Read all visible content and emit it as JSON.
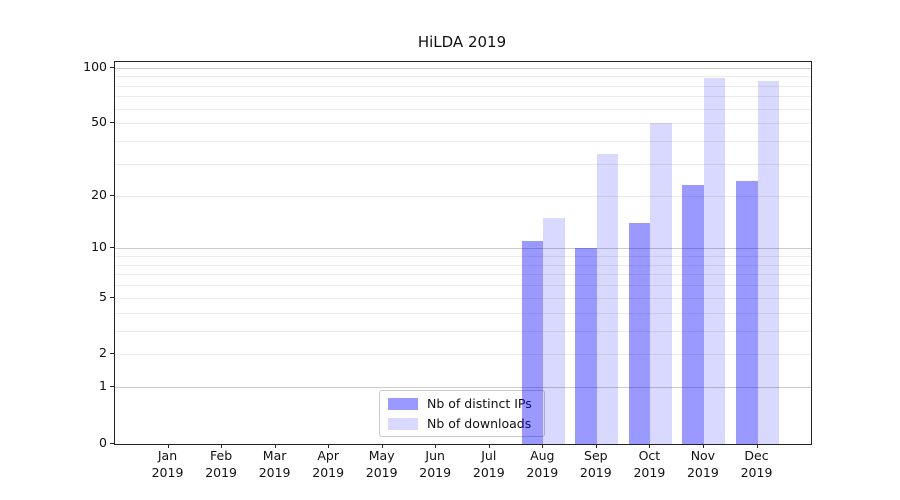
{
  "title": "HiLDA 2019",
  "chart_data": {
    "type": "bar",
    "title": "HiLDA 2019",
    "categories": [
      "Jan",
      "Feb",
      "Mar",
      "Apr",
      "May",
      "Jun",
      "Jul",
      "Aug",
      "Sep",
      "Oct",
      "Nov",
      "Dec"
    ],
    "year_label": "2019",
    "series": [
      {
        "name": "Nb of distinct IPs",
        "color": "rgba(0,0,255,0.4)",
        "color_hex": "#9999ff",
        "values": [
          0,
          0,
          0,
          0,
          0,
          0,
          0,
          11,
          10,
          14,
          23,
          24
        ]
      },
      {
        "name": "Nb of downloads",
        "color": "rgba(0,0,255,0.15)",
        "color_hex": "#d9d9ff",
        "values": [
          0,
          0,
          0,
          0,
          0,
          0,
          0,
          15,
          34,
          50,
          88,
          85
        ]
      }
    ],
    "yticks": [
      0,
      1,
      2,
      5,
      10,
      20,
      50,
      100
    ],
    "ylim": [
      0,
      107
    ],
    "yscale": "log1p",
    "grid": "horizontal",
    "legend_position": "inside-bottom-center"
  }
}
